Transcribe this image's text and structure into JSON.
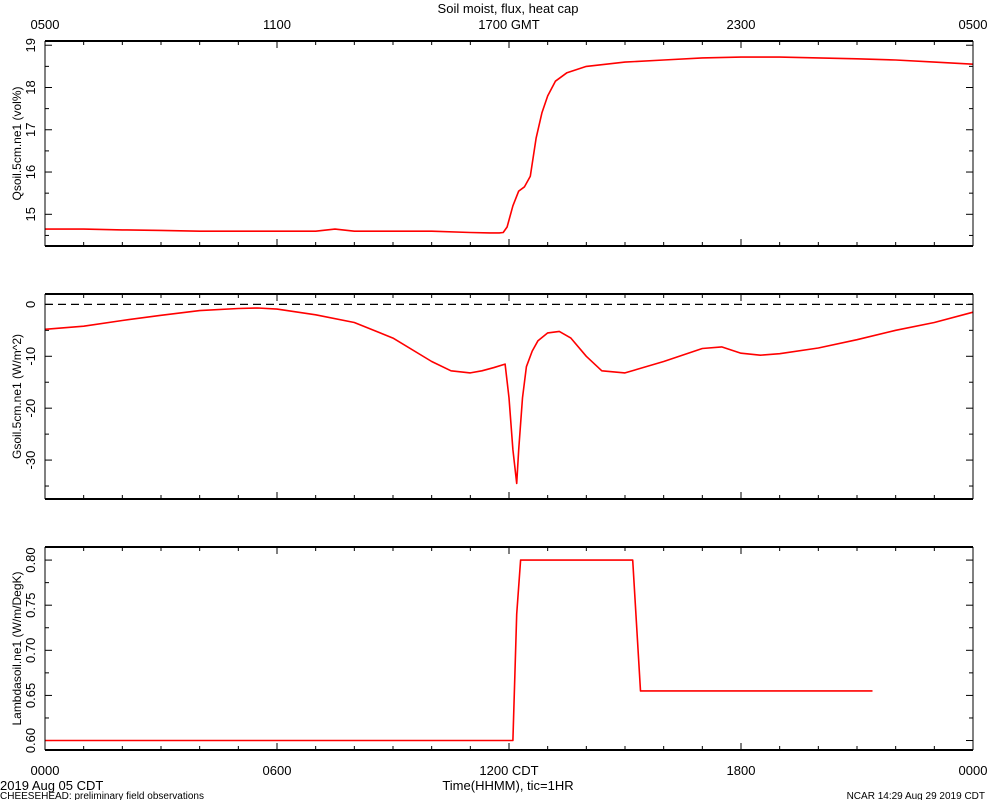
{
  "title": "Soil moist, flux, heat cap",
  "top_axis": {
    "ticks": [
      "0500",
      "1100",
      "1700 GMT",
      "2300",
      "0500"
    ]
  },
  "bottom_axis": {
    "ticks": [
      "0000",
      "0600",
      "1200 CDT",
      "1800",
      "0000"
    ],
    "label": "Time(HHMM), tic=1HR",
    "date_label": "2019 Aug 05 CDT"
  },
  "footer": {
    "left": "CHEESEHEAD: preliminary field observations",
    "right": "NCAR 14:29 Aug 29 2019 CDT"
  },
  "colors": {
    "series": "#ff0000",
    "axes": "#000000",
    "zero_line": "#000000"
  },
  "chart_data": [
    {
      "type": "line",
      "ylabel": "Qsoil.5cm.ne1 (vol%)",
      "x_units": "hours since 0000 CDT",
      "xlim": [
        0,
        24
      ],
      "ylim": [
        14.25,
        19.1
      ],
      "yticks": [
        "15",
        "16",
        "17",
        "18",
        "19"
      ],
      "series": [
        {
          "x": [
            0,
            1,
            2,
            3,
            4,
            5,
            6,
            7,
            7.5,
            8,
            9,
            10,
            11,
            11.5,
            11.75,
            11.85,
            11.95,
            12.1,
            12.25,
            12.4,
            12.55,
            12.7,
            12.85,
            13.0,
            13.2,
            13.5,
            14,
            15,
            16,
            17,
            18,
            19,
            20,
            21,
            22,
            23,
            24
          ],
          "y": [
            14.65,
            14.65,
            14.63,
            14.62,
            14.6,
            14.6,
            14.6,
            14.6,
            14.65,
            14.6,
            14.6,
            14.6,
            14.57,
            14.56,
            14.56,
            14.57,
            14.7,
            15.2,
            15.55,
            15.65,
            15.9,
            16.8,
            17.4,
            17.8,
            18.15,
            18.35,
            18.5,
            18.6,
            18.65,
            18.7,
            18.72,
            18.72,
            18.7,
            18.68,
            18.65,
            18.6,
            18.55
          ]
        }
      ]
    },
    {
      "type": "line",
      "ylabel": "Gsoil.5cm.ne1 (W/m^2)",
      "xlim": [
        0,
        24
      ],
      "ylim": [
        -37.5,
        2
      ],
      "yticks": [
        "0",
        "-10",
        "-20",
        "-30"
      ],
      "reference_line": 0,
      "series": [
        {
          "x": [
            0,
            1,
            2,
            3,
            4,
            5,
            5.5,
            6,
            7,
            8,
            9,
            10,
            10.5,
            11,
            11.3,
            11.6,
            11.9,
            12.0,
            12.1,
            12.2,
            12.25,
            12.35,
            12.45,
            12.6,
            12.75,
            13.0,
            13.3,
            13.6,
            14.0,
            14.4,
            15.0,
            16,
            17,
            17.5,
            18,
            18.5,
            19,
            20,
            21,
            22,
            23,
            24
          ],
          "y": [
            -4.8,
            -4.2,
            -3.1,
            -2.1,
            -1.2,
            -0.8,
            -0.7,
            -0.9,
            -2.0,
            -3.5,
            -6.5,
            -11.0,
            -12.8,
            -13.2,
            -12.8,
            -12.2,
            -11.5,
            -18.0,
            -28.0,
            -34.5,
            -28.0,
            -18.0,
            -12.0,
            -9.0,
            -7.0,
            -5.5,
            -5.2,
            -6.5,
            -10.0,
            -12.8,
            -13.2,
            -11.0,
            -8.5,
            -8.2,
            -9.4,
            -9.8,
            -9.5,
            -8.4,
            -6.8,
            -5.0,
            -3.5,
            -1.5
          ]
        }
      ]
    },
    {
      "type": "line",
      "ylabel": "Lambdasoil.ne1 (W/m/DegK)",
      "xlim": [
        0,
        24
      ],
      "ylim": [
        0.5895,
        0.8145
      ],
      "yticks": [
        "0.60",
        "0.65",
        "0.70",
        "0.75",
        "0.80"
      ],
      "series": [
        {
          "x": [
            0,
            12.1,
            12.2,
            12.3,
            15.2,
            15.4,
            21.4
          ],
          "y": [
            0.6,
            0.6,
            0.74,
            0.8,
            0.8,
            0.655,
            0.655
          ]
        }
      ]
    }
  ]
}
